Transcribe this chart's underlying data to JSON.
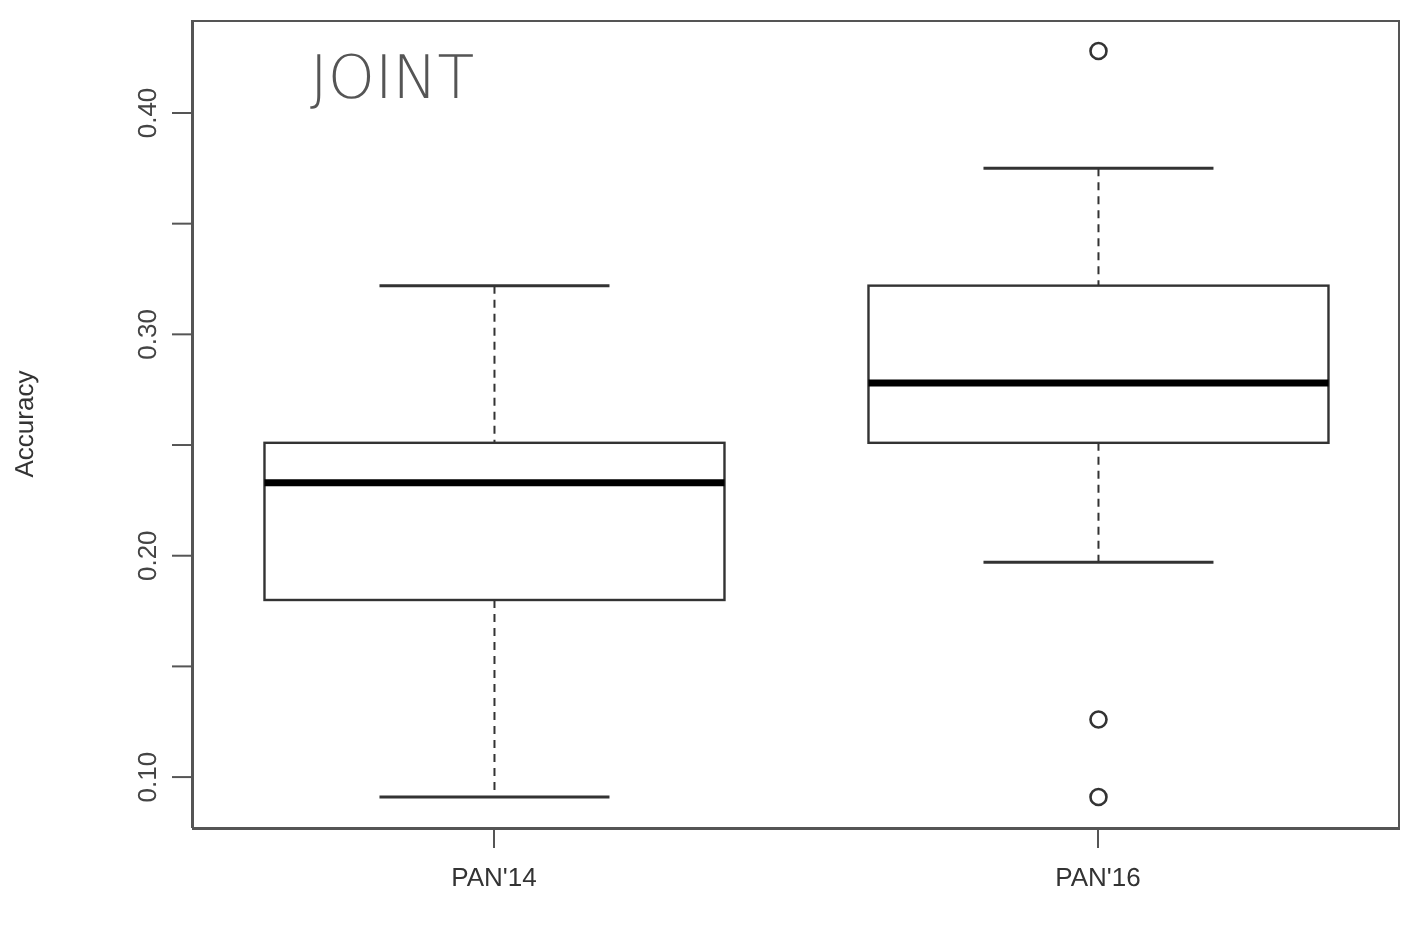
{
  "chart_data": {
    "type": "box",
    "title": "JOINT",
    "ylabel": "Accuracy",
    "categories": [
      "PAN'14",
      "PAN'16"
    ],
    "series": [
      {
        "color": "#333333",
        "boxes": [
          {
            "low": 0.091,
            "q1": 0.18,
            "median": 0.233,
            "q3": 0.251,
            "high": 0.322
          },
          {
            "low": 0.197,
            "q1": 0.251,
            "median": 0.278,
            "q3": 0.322,
            "high": 0.375,
            "outliers": [
              0.428,
              0.126,
              0.091
            ]
          }
        ]
      }
    ],
    "ylim": [
      0.077,
      0.442
    ],
    "yticks": [
      {
        "value": 0.1,
        "label": "0.10"
      },
      {
        "value": 0.15,
        "label": null
      },
      {
        "value": 0.2,
        "label": "0.20"
      },
      {
        "value": 0.25,
        "label": null
      },
      {
        "value": 0.3,
        "label": "0.30"
      },
      {
        "value": 0.35,
        "label": null
      },
      {
        "value": 0.4,
        "label": "0.40"
      }
    ],
    "grid": false,
    "legend": false
  }
}
